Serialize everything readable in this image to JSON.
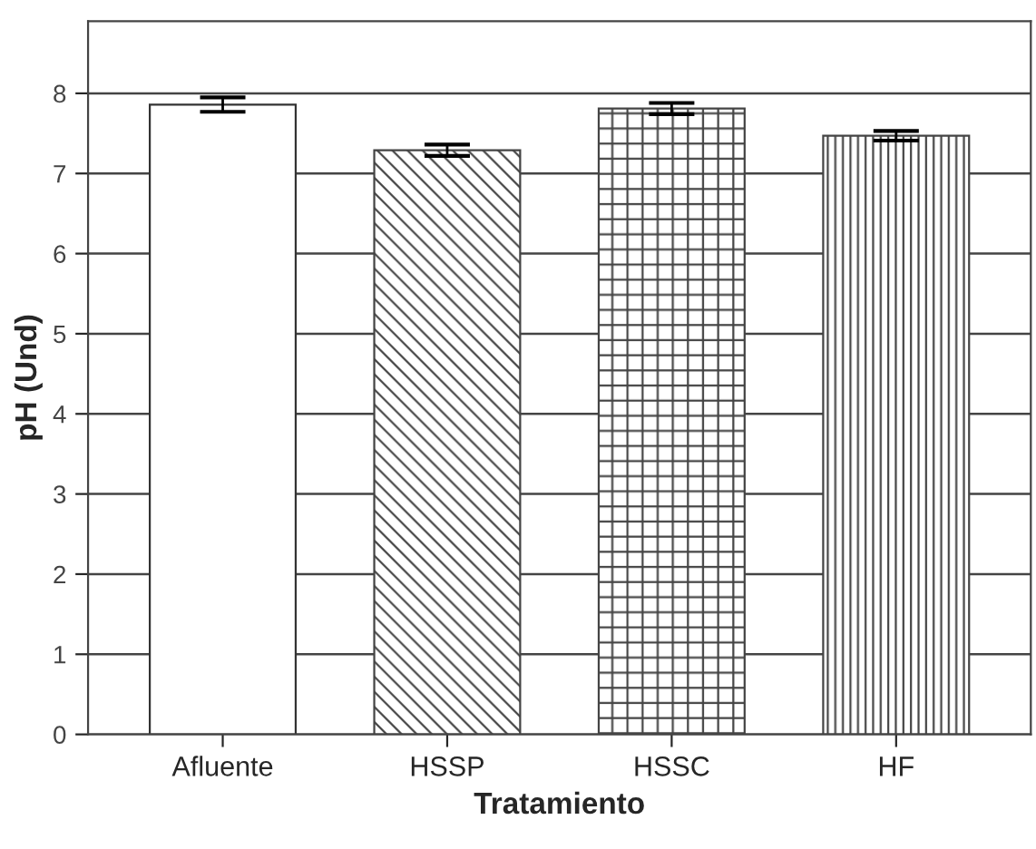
{
  "chart_data": {
    "type": "bar",
    "xlabel": "Tratamiento",
    "ylabel": "pH (Und)",
    "categories": [
      "Afluente",
      "HSSP",
      "HSSC",
      "HF"
    ],
    "values": [
      7.86,
      7.29,
      7.81,
      7.47
    ],
    "errors": [
      0.09,
      0.07,
      0.07,
      0.06
    ],
    "colors": [
      "#ffffff",
      "#444444",
      "#444444",
      "#444444"
    ],
    "ylim": [
      0,
      8.9
    ],
    "yticks": [
      0,
      1,
      2,
      3,
      4,
      5,
      6,
      7,
      8
    ],
    "grid": "y"
  }
}
